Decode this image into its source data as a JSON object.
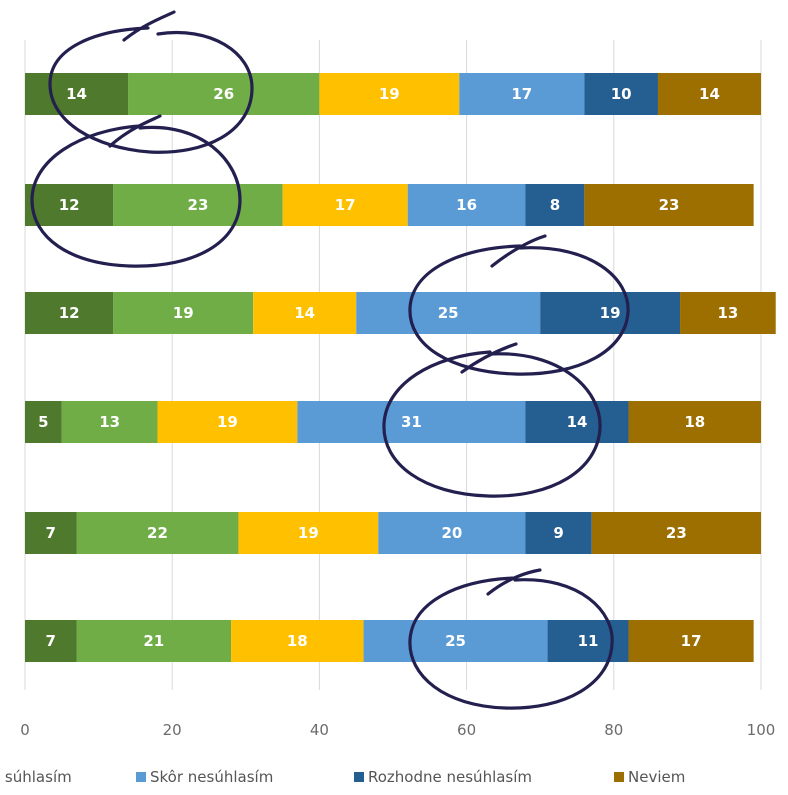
{
  "chart_data": {
    "type": "bar",
    "orientation": "horizontal",
    "stacked": true,
    "xlim": [
      0,
      100
    ],
    "x_ticks": [
      "0",
      "20",
      "40",
      "60",
      "80",
      "100"
    ],
    "grid": true,
    "legend_position": "bottom",
    "series": [
      {
        "name": "",
        "color": "#4f7a2e",
        "values": [
          14,
          12,
          12,
          5,
          7,
          7
        ]
      },
      {
        "name": "i súhlasím",
        "color": "#70ad47",
        "values": [
          26,
          23,
          19,
          13,
          22,
          21
        ]
      },
      {
        "name": "",
        "color": "#ffc000",
        "values": [
          19,
          17,
          14,
          19,
          19,
          18
        ]
      },
      {
        "name": "Skôr nesúhlasím",
        "color": "#5b9bd5",
        "values": [
          17,
          16,
          25,
          31,
          20,
          25
        ]
      },
      {
        "name": "Rozhodne nesúhlasím",
        "color": "#255e91",
        "values": [
          10,
          8,
          19,
          14,
          9,
          11
        ]
      },
      {
        "name": "Neviem",
        "color": "#9c6f00",
        "values": [
          14,
          23,
          13,
          18,
          23,
          17
        ]
      }
    ]
  }
}
